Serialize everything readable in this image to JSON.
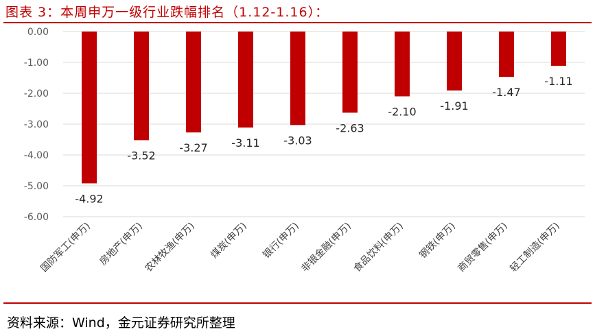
{
  "title": "图表 3：本周申万一级行业跌幅排名（1.12-1.16）：",
  "source": "资料来源：Wind，金元证券研究所整理",
  "colors": {
    "accent": "#c00000",
    "bar": "#c00000",
    "axis_text": "#595959",
    "grid": "#d9d9d9"
  },
  "chart_data": {
    "type": "bar",
    "categories": [
      "国防军工(申万)",
      "房地产(申万)",
      "农林牧渔(申万)",
      "煤炭(申万)",
      "银行(申万)",
      "非银金融(申万)",
      "食品饮料(申万)",
      "钢铁(申万)",
      "商贸零售(申万)",
      "轻工制造(申万)"
    ],
    "values": [
      -4.92,
      -3.52,
      -3.27,
      -3.11,
      -3.03,
      -2.63,
      -2.1,
      -1.91,
      -1.47,
      -1.11
    ],
    "data_labels": [
      "-4.92",
      "-3.52",
      "-3.27",
      "-3.11",
      "-3.03",
      "-2.63",
      "-2.10",
      "-1.91",
      "-1.47",
      "-1.11"
    ],
    "y_ticks": [
      0,
      -1,
      -2,
      -3,
      -4,
      -5,
      -6
    ],
    "y_tick_labels": [
      "0.00",
      "-1.00",
      "-2.00",
      "-3.00",
      "-4.00",
      "-5.00",
      "-6.00"
    ],
    "ylim": [
      -6,
      0
    ],
    "grid": true,
    "legend": "none"
  }
}
